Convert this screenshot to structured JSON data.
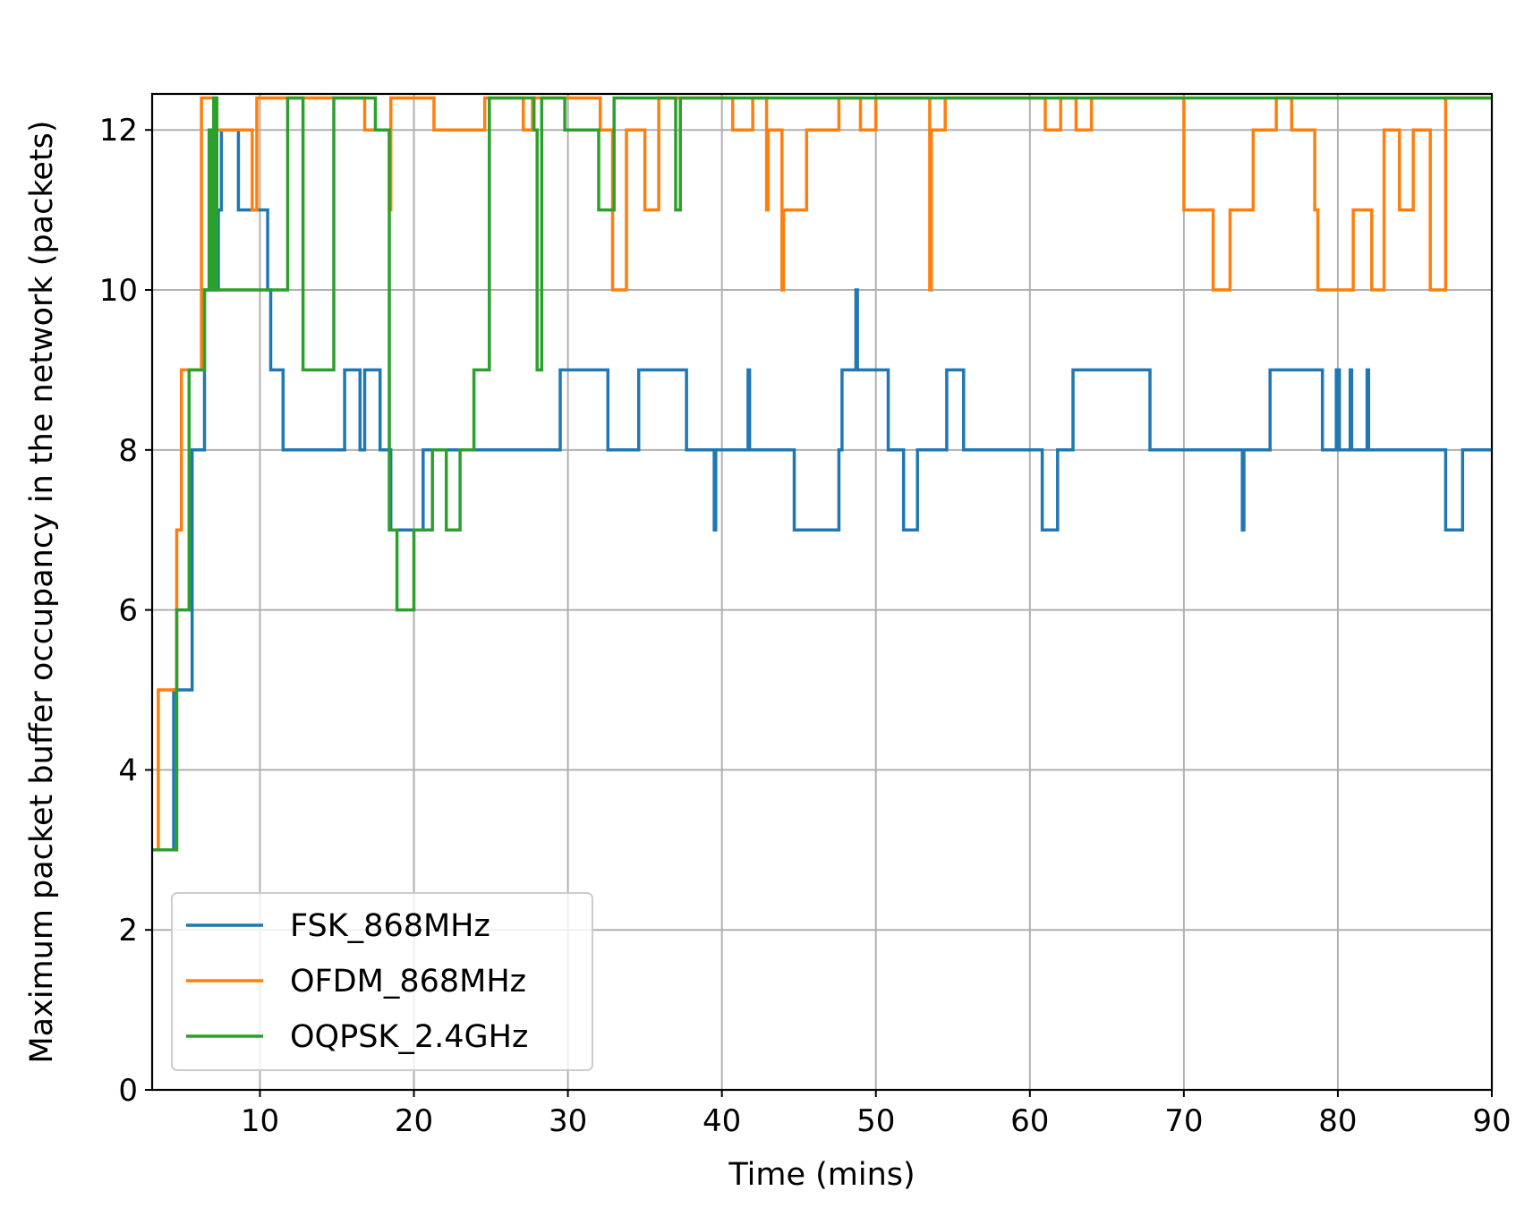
{
  "chart_data": {
    "type": "line",
    "step": true,
    "title": "",
    "xlabel": "Time (mins)",
    "ylabel": "Maximum packet buffer occupancy in the network (packets)",
    "xlim": [
      3,
      90
    ],
    "ylim": [
      0,
      12.45
    ],
    "xticks": [
      10,
      20,
      30,
      40,
      50,
      60,
      70,
      80,
      90
    ],
    "yticks": [
      0,
      2,
      4,
      6,
      8,
      10,
      12
    ],
    "grid": true,
    "legend_position": "lower-left",
    "series": [
      {
        "name": "FSK_868MHz",
        "color": "#1f77b4",
        "points": [
          [
            3,
            3
          ],
          [
            4.4,
            3
          ],
          [
            4.4,
            5
          ],
          [
            5.6,
            5
          ],
          [
            5.6,
            8
          ],
          [
            6.4,
            8
          ],
          [
            6.4,
            10
          ],
          [
            7.3,
            10
          ],
          [
            7.3,
            11
          ],
          [
            7.5,
            11
          ],
          [
            7.5,
            12
          ],
          [
            8.6,
            12
          ],
          [
            8.6,
            11
          ],
          [
            10.5,
            11
          ],
          [
            10.5,
            10
          ],
          [
            10.7,
            10
          ],
          [
            10.7,
            9
          ],
          [
            11.5,
            9
          ],
          [
            11.5,
            8
          ],
          [
            15.5,
            8
          ],
          [
            15.5,
            9
          ],
          [
            16.5,
            9
          ],
          [
            16.5,
            8
          ],
          [
            16.8,
            8
          ],
          [
            16.8,
            9
          ],
          [
            17.8,
            9
          ],
          [
            17.8,
            8
          ],
          [
            18.5,
            8
          ],
          [
            18.5,
            7
          ],
          [
            20.6,
            7
          ],
          [
            20.6,
            8
          ],
          [
            29.5,
            8
          ],
          [
            29.5,
            9
          ],
          [
            32.6,
            9
          ],
          [
            32.6,
            8
          ],
          [
            34.6,
            8
          ],
          [
            34.6,
            9
          ],
          [
            37.7,
            9
          ],
          [
            37.7,
            8
          ],
          [
            39.5,
            8
          ],
          [
            39.5,
            7
          ],
          [
            39.6,
            7
          ],
          [
            39.6,
            8
          ],
          [
            41.7,
            8
          ],
          [
            41.7,
            9
          ],
          [
            41.8,
            9
          ],
          [
            41.8,
            8
          ],
          [
            44.7,
            8
          ],
          [
            44.7,
            7
          ],
          [
            47.6,
            7
          ],
          [
            47.6,
            8
          ],
          [
            47.8,
            8
          ],
          [
            47.8,
            9
          ],
          [
            48.7,
            9
          ],
          [
            48.7,
            10
          ],
          [
            48.8,
            10
          ],
          [
            48.8,
            9
          ],
          [
            50.8,
            9
          ],
          [
            50.8,
            8
          ],
          [
            51.8,
            8
          ],
          [
            51.8,
            7
          ],
          [
            52.7,
            7
          ],
          [
            52.7,
            8
          ],
          [
            54.6,
            8
          ],
          [
            54.6,
            9
          ],
          [
            55.7,
            9
          ],
          [
            55.7,
            8
          ],
          [
            60.8,
            8
          ],
          [
            60.8,
            7
          ],
          [
            61.8,
            7
          ],
          [
            61.8,
            8
          ],
          [
            62.8,
            8
          ],
          [
            62.8,
            9
          ],
          [
            67.8,
            9
          ],
          [
            67.8,
            8
          ],
          [
            73.8,
            8
          ],
          [
            73.8,
            7
          ],
          [
            73.9,
            7
          ],
          [
            73.9,
            8
          ],
          [
            75.6,
            8
          ],
          [
            75.6,
            9
          ],
          [
            79.0,
            9
          ],
          [
            79.0,
            8
          ],
          [
            79.9,
            8
          ],
          [
            79.9,
            9
          ],
          [
            80.1,
            9
          ],
          [
            80.1,
            8
          ],
          [
            80.8,
            8
          ],
          [
            80.8,
            9
          ],
          [
            80.9,
            9
          ],
          [
            80.9,
            8
          ],
          [
            81.9,
            8
          ],
          [
            81.9,
            9
          ],
          [
            82.0,
            9
          ],
          [
            82.0,
            8
          ],
          [
            87.0,
            8
          ],
          [
            87.0,
            7
          ],
          [
            88.1,
            7
          ],
          [
            88.1,
            8
          ],
          [
            90,
            8
          ]
        ]
      },
      {
        "name": "OFDM_868MHz",
        "color": "#ff7f0e",
        "points": [
          [
            3,
            3
          ],
          [
            3.4,
            3
          ],
          [
            3.4,
            5
          ],
          [
            4.6,
            5
          ],
          [
            4.6,
            7
          ],
          [
            4.9,
            7
          ],
          [
            4.9,
            9
          ],
          [
            6.2,
            9
          ],
          [
            6.2,
            12.4
          ],
          [
            7.1,
            12.4
          ],
          [
            7.1,
            12
          ],
          [
            9.5,
            12
          ],
          [
            9.5,
            11
          ],
          [
            9.8,
            11
          ],
          [
            9.8,
            12.4
          ],
          [
            12,
            12.4
          ],
          [
            12,
            12.4
          ],
          [
            16.8,
            12.4
          ],
          [
            16.8,
            12
          ],
          [
            18.4,
            12
          ],
          [
            18.4,
            11
          ],
          [
            18.5,
            11
          ],
          [
            18.5,
            12.4
          ],
          [
            21.3,
            12.4
          ],
          [
            21.3,
            12
          ],
          [
            24.6,
            12
          ],
          [
            24.6,
            12.4
          ],
          [
            27.1,
            12.4
          ],
          [
            27.1,
            12
          ],
          [
            27.7,
            12
          ],
          [
            27.7,
            12.4
          ],
          [
            32.1,
            12.4
          ],
          [
            32.1,
            12
          ],
          [
            32.9,
            12
          ],
          [
            32.9,
            10
          ],
          [
            33.8,
            10
          ],
          [
            33.8,
            12
          ],
          [
            35.0,
            12
          ],
          [
            35.0,
            11
          ],
          [
            35.9,
            11
          ],
          [
            35.9,
            12.4
          ],
          [
            40.7,
            12.4
          ],
          [
            40.7,
            12
          ],
          [
            42.0,
            12
          ],
          [
            42.0,
            12.4
          ],
          [
            42.9,
            12.4
          ],
          [
            42.9,
            11
          ],
          [
            43.0,
            11
          ],
          [
            43.0,
            12
          ],
          [
            43.9,
            12
          ],
          [
            43.9,
            10
          ],
          [
            44.0,
            10
          ],
          [
            44.0,
            11
          ],
          [
            45.5,
            11
          ],
          [
            45.5,
            12
          ],
          [
            47.6,
            12
          ],
          [
            47.6,
            12.4
          ],
          [
            49.0,
            12.4
          ],
          [
            49.0,
            12
          ],
          [
            50.0,
            12
          ],
          [
            50.0,
            12.4
          ],
          [
            53.5,
            12.4
          ],
          [
            53.5,
            10
          ],
          [
            53.6,
            10
          ],
          [
            53.6,
            12
          ],
          [
            54.5,
            12
          ],
          [
            54.5,
            12.4
          ],
          [
            61.0,
            12.4
          ],
          [
            61.0,
            12
          ],
          [
            62.0,
            12
          ],
          [
            62.0,
            12.4
          ],
          [
            63.0,
            12.4
          ],
          [
            63.0,
            12
          ],
          [
            64.0,
            12
          ],
          [
            64.0,
            12.4
          ],
          [
            70.0,
            12.4
          ],
          [
            70.0,
            11
          ],
          [
            71.9,
            11
          ],
          [
            71.9,
            10
          ],
          [
            73.0,
            10
          ],
          [
            73.0,
            11
          ],
          [
            74.5,
            11
          ],
          [
            74.5,
            12
          ],
          [
            76.0,
            12
          ],
          [
            76.0,
            12.4
          ],
          [
            77.0,
            12.4
          ],
          [
            77.0,
            12
          ],
          [
            78.5,
            12
          ],
          [
            78.5,
            11
          ],
          [
            78.7,
            11
          ],
          [
            78.7,
            10
          ],
          [
            81.0,
            10
          ],
          [
            81.0,
            11
          ],
          [
            82.2,
            11
          ],
          [
            82.2,
            10
          ],
          [
            83.0,
            10
          ],
          [
            83.0,
            12
          ],
          [
            84.0,
            12
          ],
          [
            84.0,
            11
          ],
          [
            84.9,
            11
          ],
          [
            84.9,
            12
          ],
          [
            86.0,
            12
          ],
          [
            86.0,
            10
          ],
          [
            87.0,
            10
          ],
          [
            87.0,
            12.4
          ],
          [
            90,
            12.4
          ]
        ]
      },
      {
        "name": "OQPSK_2.4GHz",
        "color": "#2ca02c",
        "points": [
          [
            3,
            3
          ],
          [
            4.6,
            3
          ],
          [
            4.6,
            6
          ],
          [
            5.4,
            6
          ],
          [
            5.4,
            9
          ],
          [
            6.4,
            9
          ],
          [
            6.4,
            10
          ],
          [
            6.7,
            10
          ],
          [
            6.7,
            12
          ],
          [
            6.8,
            12
          ],
          [
            6.8,
            10
          ],
          [
            7.0,
            10
          ],
          [
            7.0,
            12.4
          ],
          [
            7.2,
            12.4
          ],
          [
            7.2,
            10
          ],
          [
            11.8,
            10
          ],
          [
            11.8,
            12.4
          ],
          [
            12.8,
            12.4
          ],
          [
            12.8,
            9
          ],
          [
            14.8,
            9
          ],
          [
            14.8,
            12.4
          ],
          [
            17.5,
            12.4
          ],
          [
            17.5,
            12
          ],
          [
            18.4,
            12
          ],
          [
            18.4,
            7
          ],
          [
            18.9,
            7
          ],
          [
            18.9,
            6
          ],
          [
            20.0,
            6
          ],
          [
            20.0,
            7
          ],
          [
            21.2,
            7
          ],
          [
            21.2,
            8
          ],
          [
            22.1,
            8
          ],
          [
            22.1,
            7
          ],
          [
            23.0,
            7
          ],
          [
            23.0,
            8
          ],
          [
            23.9,
            8
          ],
          [
            23.9,
            9
          ],
          [
            24.9,
            9
          ],
          [
            24.9,
            12.4
          ],
          [
            27.8,
            12.4
          ],
          [
            27.8,
            12
          ],
          [
            28.0,
            12
          ],
          [
            28.0,
            9
          ],
          [
            28.3,
            9
          ],
          [
            28.3,
            12.4
          ],
          [
            29.8,
            12.4
          ],
          [
            29.8,
            12
          ],
          [
            32.0,
            12
          ],
          [
            32.0,
            11
          ],
          [
            33.0,
            11
          ],
          [
            33.0,
            12.4
          ],
          [
            37.0,
            12.4
          ],
          [
            37.0,
            11
          ],
          [
            37.3,
            11
          ],
          [
            37.3,
            12.4
          ],
          [
            90,
            12.4
          ]
        ]
      }
    ]
  }
}
